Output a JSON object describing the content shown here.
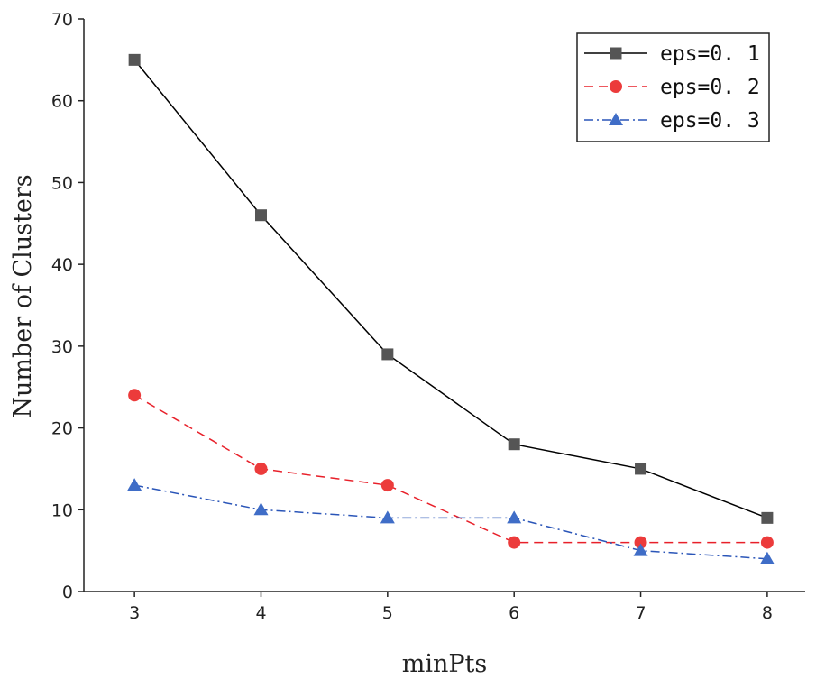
{
  "chart_data": {
    "type": "line",
    "title": "",
    "xlabel": "minPts",
    "ylabel": "Number of Clusters",
    "x": [
      3,
      4,
      5,
      6,
      7,
      8
    ],
    "xlim": [
      2.6,
      8.3
    ],
    "ylim": [
      0,
      70
    ],
    "xticks": [
      3,
      4,
      5,
      6,
      7,
      8
    ],
    "yticks": [
      0,
      10,
      20,
      30,
      40,
      50,
      60,
      70
    ],
    "grid": false,
    "legend_position": "top-right",
    "series": [
      {
        "name": "eps=0. 1",
        "values": [
          65,
          46,
          29,
          18,
          15,
          9
        ],
        "color": "#000000",
        "marker_color": "#555555",
        "marker": "square",
        "line_style": "solid"
      },
      {
        "name": "eps=0. 2",
        "values": [
          24,
          15,
          13,
          6,
          6,
          6
        ],
        "color": "#e8202a",
        "marker_color": "#ec3b3b",
        "marker": "circle",
        "line_style": "dashed"
      },
      {
        "name": "eps=0. 3",
        "values": [
          13,
          10,
          9,
          9,
          5,
          4
        ],
        "color": "#2a55b8",
        "marker_color": "#3f6dc7",
        "marker": "triangle",
        "line_style": "dashdot"
      }
    ]
  }
}
